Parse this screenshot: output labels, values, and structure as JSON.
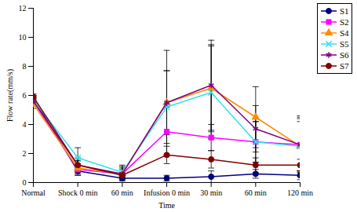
{
  "chart_data": {
    "type": "line",
    "x_label": "Time",
    "y_label": "Flow rate(mm/s)",
    "categories": [
      "Normal",
      "Shock 0 min",
      "60 min",
      "Infusion 0 min",
      "30 min",
      "60 min",
      "120 min"
    ],
    "ylim": [
      0,
      12
    ],
    "yticks": [
      0,
      2,
      4,
      6,
      8,
      10,
      12
    ],
    "legend": "right",
    "series": [
      {
        "name": "S1",
        "color": "#000080",
        "marker": "circle",
        "values": [
          5.8,
          0.8,
          0.3,
          0.3,
          0.4,
          0.6,
          0.5
        ],
        "error": [
          0.2,
          0.2,
          0.1,
          0.2,
          0.4,
          0.3,
          0.3
        ]
      },
      {
        "name": "S2",
        "color": "#ff00ff",
        "marker": "square",
        "values": [
          5.6,
          0.9,
          0.6,
          3.5,
          3.1,
          2.8,
          2.6
        ],
        "error": [
          0.3,
          0.4,
          0.3,
          1.7,
          0.9,
          1.4,
          1.8
        ]
      },
      {
        "name": "S4",
        "color": "#ff8c00",
        "marker": "triangle",
        "values": [
          5.4,
          1.0,
          0.6,
          5.5,
          6.5,
          4.5,
          2.5
        ],
        "error": [
          0.3,
          0.5,
          0.5,
          3.6,
          3.0,
          2.1,
          2.1
        ]
      },
      {
        "name": "S5",
        "color": "#33e0f0",
        "marker": "times",
        "values": [
          5.7,
          1.7,
          0.7,
          5.2,
          6.2,
          2.8,
          2.5
        ],
        "error": [
          0.3,
          0.7,
          0.5,
          2.5,
          3.2,
          1.4,
          1.7
        ]
      },
      {
        "name": "S6",
        "color": "#800080",
        "marker": "asterisk",
        "values": [
          5.6,
          1.2,
          0.6,
          5.5,
          6.7,
          3.7,
          2.6
        ],
        "error": [
          0.3,
          0.5,
          0.4,
          2.2,
          3.1,
          1.6,
          1.9
        ]
      },
      {
        "name": "S7",
        "color": "#800000",
        "marker": "circle",
        "values": [
          5.9,
          1.2,
          0.5,
          1.9,
          1.6,
          1.2,
          1.2
        ],
        "error": [
          0.2,
          0.3,
          0.2,
          0.6,
          0.6,
          0.5,
          0.4
        ]
      }
    ]
  }
}
